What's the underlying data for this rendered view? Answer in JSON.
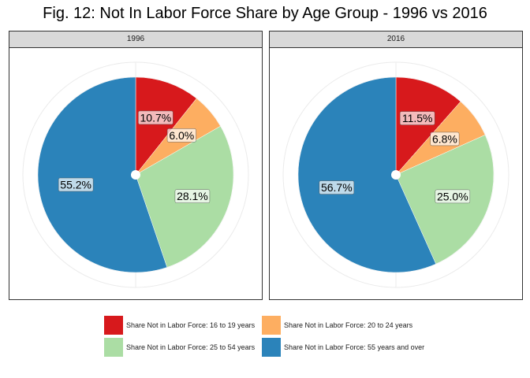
{
  "title": "Fig. 12: Not In Labor Force Share by Age Group - 1996 vs 2016",
  "chart_data": {
    "type": "pie",
    "title": "Fig. 12: Not In Labor Force Share by Age Group - 1996 vs 2016",
    "categories": [
      "Share Not in Labor Force: 16 to 19 years",
      "Share Not in Labor Force: 20 to 24 years",
      "Share Not in Labor Force: 25 to 54 years",
      "Share Not in Labor Force: 55 years and over"
    ],
    "colors": [
      "#d7191c",
      "#fdae61",
      "#abdda4",
      "#2b83ba"
    ],
    "panels": [
      {
        "name": "1996",
        "values": [
          10.7,
          6.0,
          28.1,
          55.2
        ],
        "labels": [
          "10.7%",
          "6.0%",
          "28.1%",
          "55.2%"
        ]
      },
      {
        "name": "2016",
        "values": [
          11.5,
          6.8,
          25.0,
          56.7
        ],
        "labels": [
          "11.5%",
          "6.8%",
          "25.0%",
          "56.7%"
        ]
      }
    ],
    "legend_position": "bottom"
  }
}
